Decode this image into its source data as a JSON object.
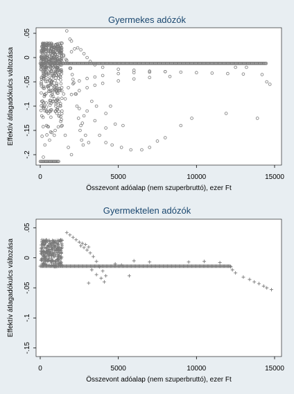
{
  "chart_data": [
    {
      "type": "scatter",
      "title": "Gyermekes adózók",
      "xlabel": "Összevont adóalap (nem szuperbruttó), ezer Ft",
      "ylabel": "Effektív átlagadókulcs változása",
      "xlim": [
        0,
        15000
      ],
      "ylim": [
        -0.21,
        0.05
      ],
      "xticks": [
        0,
        5000,
        10000,
        15000
      ],
      "xtick_labels": [
        "0",
        "5000",
        "10000",
        "15000"
      ],
      "yticks": [
        0.05,
        0,
        -0.05,
        -0.1,
        -0.15,
        -0.2
      ],
      "ytick_labels": [
        ".05",
        "0",
        "-.05",
        "-.1",
        "-.15",
        "-.2"
      ],
      "marker": "circle",
      "grid": false,
      "legend": "none",
      "colors": {
        "marker": "#7a7a7a",
        "plot_bg": "#ffffff",
        "title": "#1a476f"
      },
      "series": [
        {
          "values": [
            [
              300,
              0.028
            ],
            [
              450,
              0.026
            ],
            [
              600,
              0.024
            ],
            [
              750,
              0.022
            ],
            [
              900,
              0.02
            ],
            [
              1050,
              0.017
            ],
            [
              1200,
              0.013
            ],
            [
              1350,
              0.008
            ],
            [
              1500,
              0.003
            ],
            [
              1650,
              -0.004
            ],
            [
              1800,
              -0.012
            ],
            [
              1950,
              -0.022
            ],
            [
              2050,
              -0.035
            ],
            [
              2150,
              -0.052
            ],
            [
              2250,
              -0.075
            ],
            [
              2350,
              -0.1
            ],
            [
              2450,
              -0.125
            ],
            [
              2550,
              -0.15
            ],
            [
              2650,
              -0.17
            ],
            [
              2750,
              -0.18
            ],
            [
              1300,
              0.012
            ],
            [
              1500,
              0.005
            ],
            [
              1700,
              -0.006
            ],
            [
              1900,
              -0.022
            ],
            [
              2100,
              -0.045
            ],
            [
              2300,
              -0.075
            ],
            [
              2500,
              -0.105
            ],
            [
              2700,
              -0.135
            ],
            [
              2900,
              -0.16
            ],
            [
              3100,
              -0.175
            ],
            [
              2000,
              0.012
            ],
            [
              2200,
              0.018
            ],
            [
              2400,
              0.02
            ],
            [
              2600,
              0.016
            ],
            [
              2800,
              0.008
            ],
            [
              3000,
              0
            ],
            [
              3200,
              -0.008
            ],
            [
              3500,
              -0.015
            ],
            [
              4000,
              -0.02
            ],
            [
              5000,
              -0.024
            ],
            [
              6000,
              -0.026
            ],
            [
              7000,
              -0.028
            ],
            [
              8000,
              -0.029
            ],
            [
              9000,
              -0.03
            ],
            [
              10000,
              -0.031
            ],
            [
              11000,
              -0.032
            ],
            [
              12000,
              -0.033
            ],
            [
              13000,
              -0.034
            ],
            [
              14200,
              -0.035
            ],
            [
              1200,
              -0.09
            ],
            [
              1500,
              -0.075
            ],
            [
              1800,
              -0.062
            ],
            [
              2100,
              -0.054
            ],
            [
              2500,
              -0.048
            ],
            [
              3000,
              -0.043
            ],
            [
              3500,
              -0.04
            ],
            [
              4000,
              -0.037
            ],
            [
              5000,
              -0.033
            ],
            [
              6000,
              -0.031
            ],
            [
              7000,
              -0.03
            ],
            [
              8000,
              -0.029
            ],
            [
              1000,
              -0.11
            ],
            [
              1300,
              -0.095
            ],
            [
              1600,
              -0.085
            ],
            [
              2000,
              -0.076
            ],
            [
              2500,
              -0.068
            ],
            [
              3000,
              -0.062
            ],
            [
              3500,
              -0.057
            ],
            [
              4000,
              -0.053
            ],
            [
              5000,
              -0.048
            ],
            [
              6000,
              -0.044
            ],
            [
              7000,
              -0.041
            ],
            [
              8300,
              -0.039
            ],
            [
              800,
              -0.09
            ],
            [
              1000,
              -0.1
            ],
            [
              1200,
              -0.12
            ],
            [
              1400,
              -0.14
            ],
            [
              1600,
              -0.16
            ],
            [
              1800,
              -0.185
            ],
            [
              2000,
              -0.2
            ],
            [
              3500,
              -0.13
            ],
            [
              3800,
              -0.16
            ],
            [
              4200,
              -0.175
            ],
            [
              4600,
              -0.18
            ],
            [
              5200,
              -0.185
            ],
            [
              5800,
              -0.19
            ],
            [
              6500,
              -0.19
            ],
            [
              7000,
              -0.185
            ],
            [
              7500,
              -0.172
            ],
            [
              8000,
              -0.165
            ],
            [
              9000,
              -0.14
            ],
            [
              9700,
              -0.125
            ],
            [
              11900,
              -0.115
            ],
            [
              13900,
              -0.125
            ],
            [
              14500,
              -0.05
            ],
            [
              14700,
              -0.055
            ],
            [
              13200,
              -0.02
            ],
            [
              12500,
              -0.02
            ],
            [
              4800,
              -0.137
            ],
            [
              5300,
              -0.14
            ],
            [
              4200,
              -0.115
            ],
            [
              3600,
              -0.1
            ],
            [
              3300,
              -0.09
            ],
            [
              4500,
              -0.1
            ],
            [
              1700,
              0.055
            ],
            [
              1900,
              0.038
            ],
            [
              2000,
              0.034
            ],
            [
              2600,
              -0.14
            ],
            [
              2800,
              -0.12
            ],
            [
              3000,
              -0.11
            ],
            [
              4200,
              -0.145
            ],
            [
              500,
              -0.06
            ],
            [
              700,
              -0.05
            ],
            [
              400,
              -0.14
            ],
            [
              200,
              -0.205
            ],
            [
              300,
              -0.18
            ],
            [
              600,
              -0.17
            ],
            [
              900,
              -0.16
            ],
            [
              100,
              -0.12
            ],
            [
              100,
              -0.09
            ]
          ],
          "baseline_bands": [
            [
              0,
              -0.214
            ],
            [
              1200,
              -0.214
            ],
            [
              0,
              -0.012
            ],
            [
              14500,
              -0.012
            ]
          ]
        }
      ]
    },
    {
      "type": "scatter",
      "title": "Gyermektelen adózók",
      "xlabel": "Összevont adóalap (nem szuperbruttó), ezer Ft",
      "ylabel": "Effektív átlagadókulcs változása",
      "xlim": [
        0,
        15000
      ],
      "ylim": [
        -0.155,
        0.055
      ],
      "xticks": [
        0,
        5000,
        10000,
        15000
      ],
      "xtick_labels": [
        "0",
        "5000",
        "10000",
        "15000"
      ],
      "yticks": [
        0.05,
        0,
        -0.05,
        -0.1,
        -0.15
      ],
      "ytick_labels": [
        ".05",
        "0",
        "-.05",
        "-.1",
        "-.15"
      ],
      "marker": "plus",
      "grid": false,
      "legend": "none",
      "colors": {
        "marker": "#7a7a7a",
        "plot_bg": "#ffffff",
        "title": "#1a476f"
      },
      "series": [
        {
          "values": [
            [
              1700,
              0.042
            ],
            [
              1900,
              0.038
            ],
            [
              2100,
              0.034
            ],
            [
              2300,
              0.03
            ],
            [
              2500,
              0.026
            ],
            [
              2700,
              0.024
            ],
            [
              2900,
              0.022
            ],
            [
              3100,
              0.018
            ],
            [
              2600,
              0.02
            ],
            [
              2800,
              0.017
            ],
            [
              3000,
              0.013
            ],
            [
              3200,
              0.008
            ],
            [
              3400,
              0.002
            ],
            [
              3600,
              -0.006
            ],
            [
              3800,
              -0.015
            ],
            [
              4000,
              -0.022
            ],
            [
              4200,
              -0.03
            ],
            [
              3300,
              -0.02
            ],
            [
              3600,
              -0.028
            ],
            [
              3900,
              -0.034
            ],
            [
              4100,
              -0.04
            ],
            [
              3100,
              -0.042
            ],
            [
              5700,
              -0.03
            ],
            [
              12200,
              -0.015
            ],
            [
              12300,
              -0.02
            ],
            [
              12500,
              -0.025
            ],
            [
              13000,
              -0.032
            ],
            [
              13400,
              -0.036
            ],
            [
              13700,
              -0.04
            ],
            [
              14000,
              -0.043
            ],
            [
              14300,
              -0.047
            ],
            [
              14500,
              -0.05
            ],
            [
              14800,
              -0.053
            ],
            [
              10500,
              -0.006
            ],
            [
              11500,
              -0.008
            ],
            [
              9500,
              -0.007
            ],
            [
              7000,
              -0.007
            ],
            [
              6000,
              -0.005
            ],
            [
              4800,
              -0.01
            ],
            [
              5200,
              -0.012
            ]
          ],
          "baseline_bands": [
            [
              0,
              -0.014
            ],
            [
              12200,
              -0.014
            ]
          ]
        }
      ]
    }
  ]
}
